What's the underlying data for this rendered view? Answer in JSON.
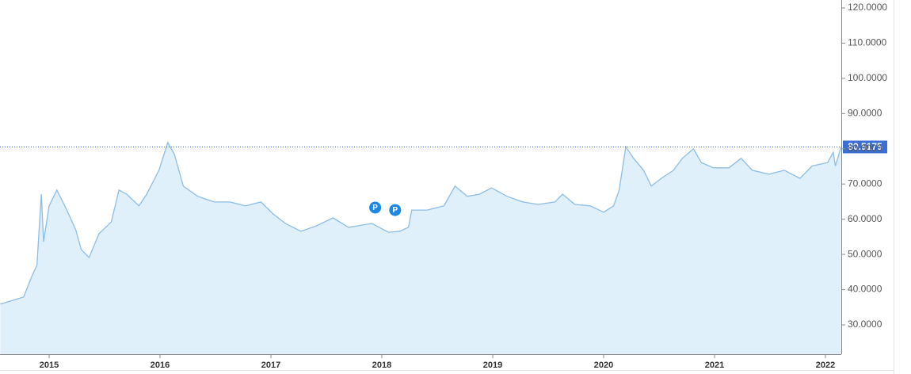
{
  "chart_data": {
    "type": "area",
    "series": [
      {
        "color": "#8cbde6",
        "fill": "#e0f0fa",
        "x": [
          2014.56,
          2014.77,
          2014.84,
          2014.89,
          2014.93,
          2014.95,
          2015.0,
          2015.07,
          2015.16,
          2015.24,
          2015.29,
          2015.36,
          2015.45,
          2015.56,
          2015.63,
          2015.7,
          2015.81,
          2015.88,
          2015.99,
          2016.07,
          2016.13,
          2016.21,
          2016.34,
          2016.49,
          2016.63,
          2016.77,
          2016.91,
          2017.02,
          2017.13,
          2017.27,
          2017.41,
          2017.56,
          2017.7,
          2017.91,
          2018.06,
          2018.16,
          2018.24,
          2018.27,
          2018.41,
          2018.56,
          2018.66,
          2018.77,
          2018.88,
          2018.99,
          2019.13,
          2019.27,
          2019.41,
          2019.56,
          2019.63,
          2019.74,
          2019.88,
          2020.0,
          2020.09,
          2020.14,
          2020.2,
          2020.27,
          2020.36,
          2020.43,
          2020.52,
          2020.63,
          2020.71,
          2020.81,
          2020.88,
          2020.99,
          2021.13,
          2021.24,
          2021.34,
          2021.49,
          2021.63,
          2021.77,
          2021.88,
          2022.02,
          2022.07,
          2022.09,
          2022.14
        ],
        "values": [
          35.9,
          37.9,
          43.5,
          46.9,
          67.1,
          53.6,
          63.8,
          68.3,
          62.6,
          57,
          51.4,
          49.1,
          55.9,
          59.2,
          68.3,
          67.1,
          63.8,
          67.1,
          73.9,
          81.8,
          78.4,
          69.4,
          66.5,
          64.9,
          64.9,
          63.8,
          64.9,
          61.5,
          58.8,
          56.6,
          58.1,
          60.4,
          57.7,
          58.8,
          56.3,
          56.6,
          57.7,
          62.6,
          62.6,
          63.8,
          69.4,
          66.5,
          67.1,
          68.9,
          66.5,
          64.9,
          64.2,
          64.9,
          67.1,
          64.2,
          63.8,
          62,
          63.8,
          68.3,
          80.6,
          77.3,
          73.9,
          69.4,
          71.6,
          73.9,
          77.3,
          80,
          76.1,
          74.6,
          74.6,
          77.3,
          73.9,
          72.8,
          73.9,
          71.6,
          75.1,
          76.1,
          79,
          75.1,
          80.5175
        ]
      }
    ],
    "last_value_color": "#3b6fd4",
    "annotations": [
      {
        "label": "P",
        "x": 2017.94,
        "y": 63.3
      },
      {
        "label": "P",
        "x": 2018.12,
        "y": 62.6
      }
    ],
    "annotation_color": "#1e88e5",
    "xlim": [
      2014.557,
      2022.143
    ],
    "xticks": [
      2015,
      2016,
      2017,
      2018,
      2019,
      2020,
      2021,
      2022
    ],
    "ylim": [
      21.67,
      122.25
    ],
    "yticks": [
      {
        "value": 30,
        "label": "30.0000"
      },
      {
        "value": 40,
        "label": "40.0000"
      },
      {
        "value": 50,
        "label": "50.0000"
      },
      {
        "value": 60,
        "label": "60.0000"
      },
      {
        "value": 70,
        "label": "70.0000"
      },
      {
        "value": 80,
        "label": "80.0000"
      },
      {
        "value": 90,
        "label": "90.0000"
      },
      {
        "value": 100,
        "label": "100.0000"
      },
      {
        "value": 110,
        "label": "110.0000"
      },
      {
        "value": 120,
        "label": "120.0000"
      }
    ]
  }
}
